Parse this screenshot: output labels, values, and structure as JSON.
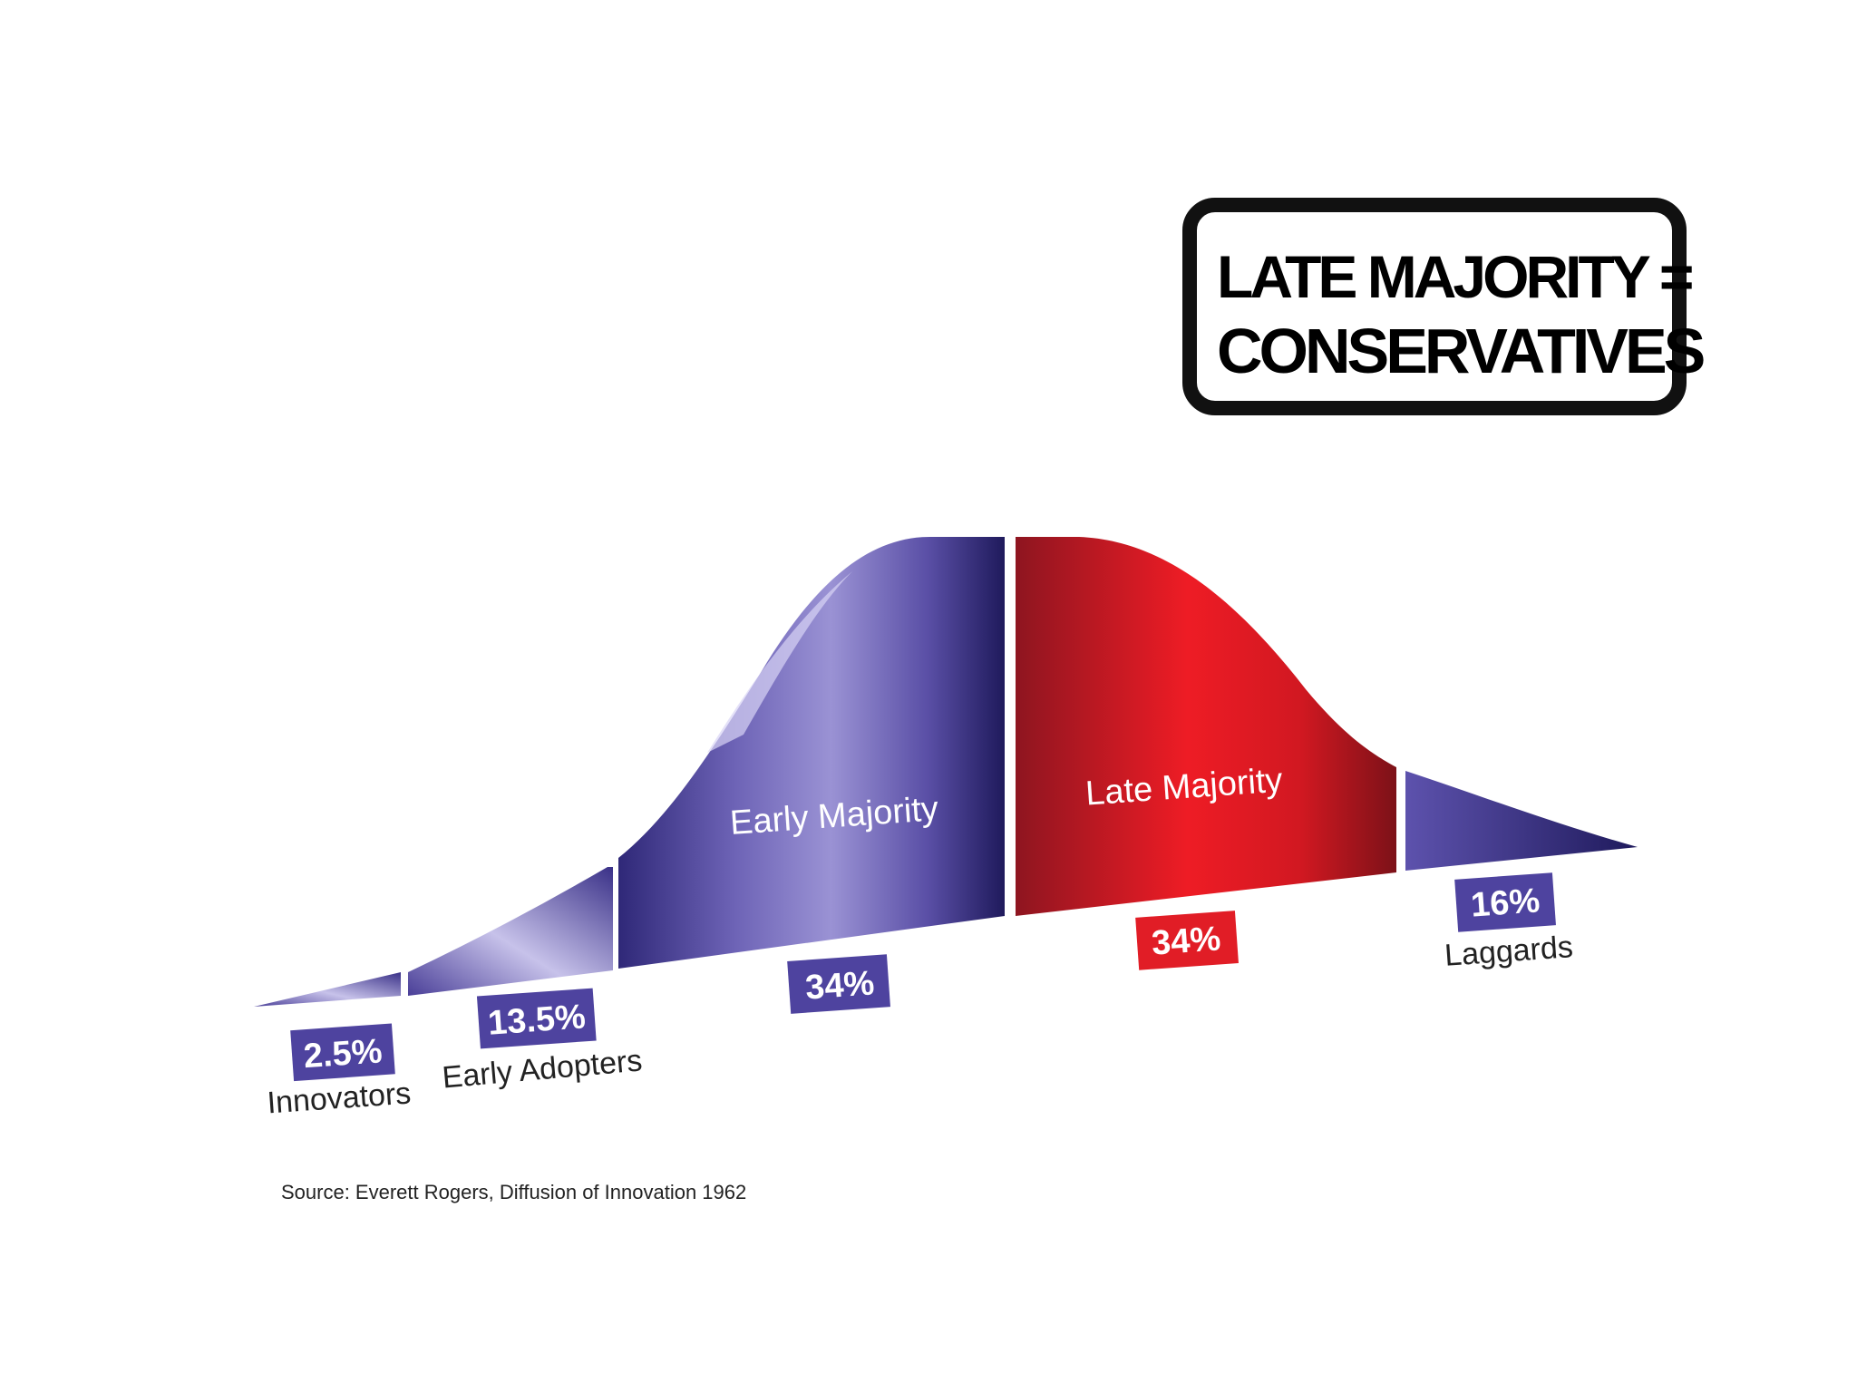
{
  "callout": {
    "line1": "LATE MAJORITY =",
    "line2": "CONSERVATIVES"
  },
  "chart_data": {
    "type": "area",
    "segments": [
      {
        "category": "Innovators",
        "share": "2.5%",
        "value": 2.5,
        "color": "#5b4ea8"
      },
      {
        "category": "Early Adopters",
        "share": "13.5%",
        "value": 13.5,
        "color": "#5b4ea8"
      },
      {
        "category": "Early Majority",
        "share": "34%",
        "value": 34,
        "color": "#4a3f98"
      },
      {
        "category": "Late Majority",
        "share": "34%",
        "value": 34,
        "color": "#e11d26"
      },
      {
        "category": "Laggards",
        "share": "16%",
        "value": 16,
        "color": "#4a3f98"
      }
    ],
    "inner_labels": {
      "early_majority": "Early Majority",
      "late_majority": "Late Majority"
    }
  },
  "source": "Source: Everett Rogers, Diffusion of Innovation 1962"
}
